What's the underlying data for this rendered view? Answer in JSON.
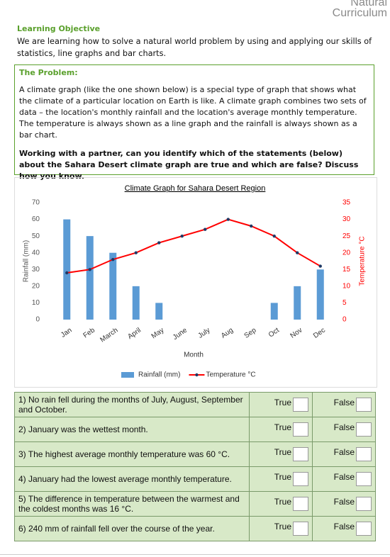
{
  "logo": [
    "Natural",
    "Curriculum"
  ],
  "objective": {
    "title": "Learning Objective",
    "text": "We are learning how to solve a natural world problem by using and applying our skills of statistics, line graphs and bar charts."
  },
  "problem": {
    "title": "The Problem:",
    "text": "A climate graph (like the one shown below) is a special type of graph that shows what the climate of a particular location on Earth is like. A climate graph combines two sets of data – the location's monthly rainfall and the location's average monthly temperature. The temperature is always shown as a line graph and the rainfall is always shown as a bar chart.",
    "task": "Working with a partner, can you identify which of the statements (below) about the Sahara Desert climate graph are true and which are false? Discuss how you know."
  },
  "chart_data": {
    "type": "bar",
    "title": "Climate Graph for Sahara Desert Region",
    "x_label": "Month",
    "y_label": "Rainfall (mm)",
    "y2_label": "Temperature °C",
    "categories": [
      "Jan",
      "Feb",
      "March",
      "April",
      "May",
      "June",
      "July",
      "Aug",
      "Sep",
      "Oct",
      "Nov",
      "Dec"
    ],
    "series": [
      {
        "name": "Rainfall (mm)",
        "type": "bar",
        "color": "#5b9bd5",
        "values": [
          60,
          50,
          40,
          20,
          10,
          0,
          0,
          0,
          0,
          10,
          20,
          30
        ]
      },
      {
        "name": "Temperature °C",
        "type": "line",
        "axis": "y2",
        "color": "#ff0000",
        "marker_color": "#1f3864",
        "values": [
          14,
          15,
          18,
          20,
          23,
          25,
          27,
          30,
          28,
          25,
          20,
          16
        ]
      }
    ],
    "ylim": [
      0,
      70
    ],
    "yticks": [
      0,
      10,
      20,
      30,
      40,
      50,
      60,
      70
    ],
    "y2lim": [
      0,
      35
    ],
    "y2ticks": [
      0,
      5,
      10,
      15,
      20,
      25,
      30,
      35
    ],
    "grid": false
  },
  "table": {
    "rows": [
      {
        "statement": "1) No rain fell during the months of July, August, September and October.",
        "true": "True",
        "false": "False"
      },
      {
        "statement": "2) January was the wettest month.",
        "true": "True",
        "false": "False"
      },
      {
        "statement": "3) The highest average monthly temperature was 60 °C.",
        "true": "True",
        "false": "False"
      },
      {
        "statement": "4) January had the lowest average monthly temperature.",
        "true": "True",
        "false": "False"
      },
      {
        "statement": "5) The difference in temperature between the warmest and the coldest months was 16 °C.",
        "true": "True",
        "false": "False"
      },
      {
        "statement": "6) 240 mm of rainfall fell over the course of the year.",
        "true": "True",
        "false": "False"
      }
    ]
  }
}
